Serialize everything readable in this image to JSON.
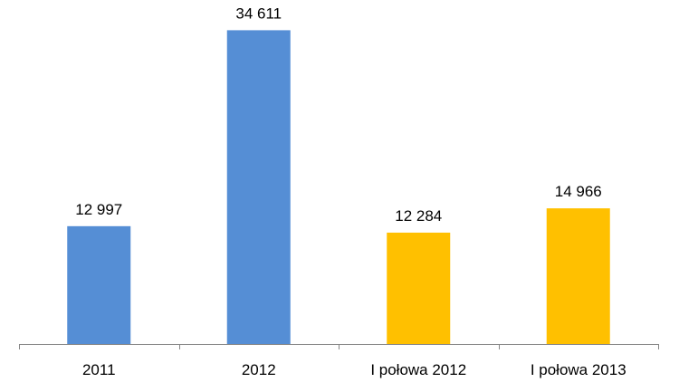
{
  "chart_data": {
    "type": "bar",
    "categories": [
      "2011",
      "2012",
      "I połowa 2012",
      "I połowa 2013"
    ],
    "values": [
      12997,
      34611,
      12284,
      14966
    ],
    "value_labels": [
      "12 997",
      "34 611",
      "12 284",
      "14 966"
    ],
    "bar_colors": [
      "#558ED5",
      "#558ED5",
      "#FFC000",
      "#FFC000"
    ],
    "title": "",
    "xlabel": "",
    "ylabel": "",
    "ylim": [
      0,
      35000
    ],
    "grid": false,
    "legend": "none"
  }
}
